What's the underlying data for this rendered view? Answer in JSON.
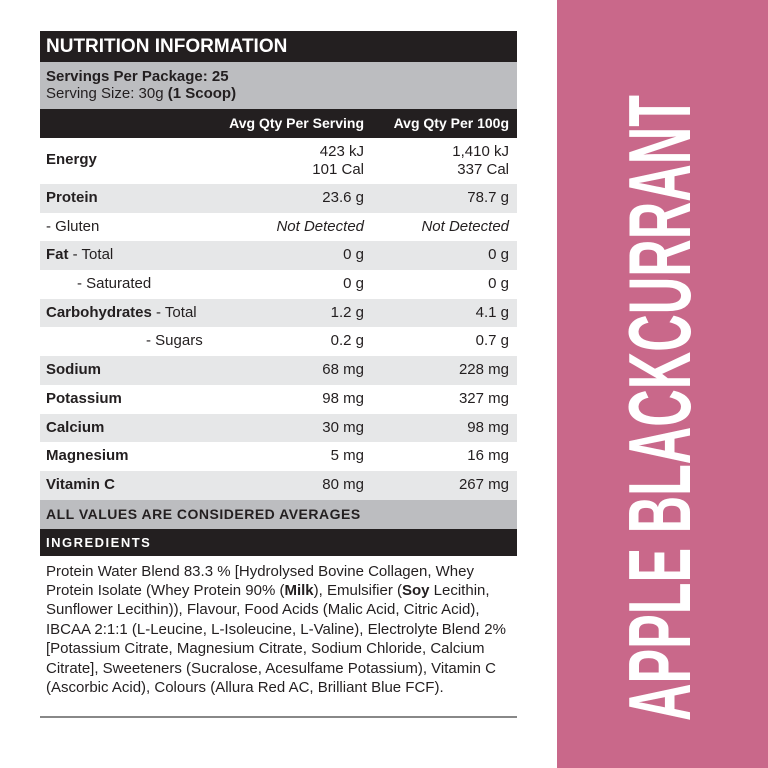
{
  "title": "NUTRITION INFORMATION",
  "servings_label": "Servings Per Package: 25",
  "serving_size_label": "Serving Size: 30g",
  "serving_size_note": "(1 Scoop)",
  "columns": [
    "Avg Qty Per Serving",
    "Avg Qty Per 100g"
  ],
  "energy": {
    "label": "Energy",
    "serving_kj": "423 kJ",
    "serving_cal": "101 Cal",
    "per100_kj": "1,410 kJ",
    "per100_cal": "337 Cal"
  },
  "rows": [
    {
      "label": "Protein",
      "sub": "",
      "serving": "23.6 g",
      "per100": "78.7 g"
    },
    {
      "label": "",
      "sub": "- Gluten",
      "serving": "Not Detected",
      "per100": "Not Detected"
    },
    {
      "label": "Fat",
      "sub": " - Total",
      "serving": "0 g",
      "per100": "0 g"
    },
    {
      "label": "",
      "sub": "- Saturated",
      "serving": "0 g",
      "per100": "0 g"
    },
    {
      "label": "Carbohydrates",
      "sub": " - Total",
      "serving": "1.2 g",
      "per100": "4.1 g"
    },
    {
      "label": "",
      "sub": "- Sugars",
      "serving": "0.2 g",
      "per100": "0.7 g"
    },
    {
      "label": "Sodium",
      "sub": "",
      "serving": "68 mg",
      "per100": "228 mg"
    },
    {
      "label": "Potassium",
      "sub": "",
      "serving": "98 mg",
      "per100": "327 mg"
    },
    {
      "label": "Calcium",
      "sub": "",
      "serving": "30 mg",
      "per100": "98 mg"
    },
    {
      "label": "Magnesium",
      "sub": "",
      "serving": "5 mg",
      "per100": "16 mg"
    },
    {
      "label": "Vitamin C",
      "sub": "",
      "serving": "80 mg",
      "per100": "267 mg"
    }
  ],
  "averages_note": "ALL VALUES ARE CONSIDERED AVERAGES",
  "ingredients_title": "INGREDIENTS",
  "ingredients": {
    "p1": "Protein Water Blend 83.3 % [Hydrolysed Bovine Collagen, Whey Protein Isolate (Whey Protein 90% (",
    "b1": "Milk",
    "p2": "), Emulsifier (",
    "b2": "Soy",
    "p3": " Lecithin, Sunflower Lecithin)), Flavour, Food Acids (Malic Acid, Citric Acid), IBCAA 2:1:1 (L-Leucine, L-Isoleucine, L-Valine), Electrolyte Blend 2% [Potassium Citrate, Magnesium Citrate, Sodium Chloride, Calcium Citrate], Sweeteners (Sucralose, Acesulfame Potassium), Vitamin C (Ascorbic Acid), Colours (Allura Red AC, Brilliant Blue FCF)."
  },
  "flavour": "APPLE BLACKCURRANT",
  "colors": {
    "side_panel": "#c9688a",
    "dark": "#231f20",
    "gray": "#bcbdc0",
    "light_gray": "#e6e7e8"
  }
}
